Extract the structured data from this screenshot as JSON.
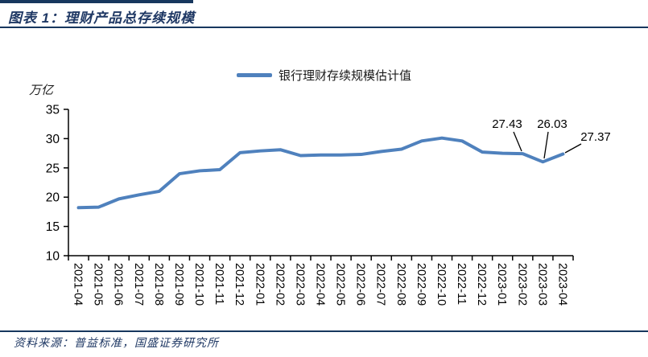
{
  "header": {
    "title": "图表 1：理财产品总存续规模"
  },
  "legend": {
    "label": "银行理财存续规模估计值"
  },
  "footer": {
    "source": "资料来源：普益标准，国盛证券研究所"
  },
  "colors": {
    "accent_navy": "#17375E",
    "title_navy": "#1F3864",
    "line_blue": "#4F81BD",
    "axis_black": "#000000"
  },
  "chart_data": {
    "type": "line",
    "title": "理财产品总存续规模",
    "series_name": "银行理财存续规模估计值",
    "xlabel": "",
    "ylabel": "万亿",
    "ylim": [
      10,
      35
    ],
    "yticks": [
      10,
      15,
      20,
      25,
      30,
      35
    ],
    "grid": false,
    "legend_position": "top",
    "line_color": "#4F81BD",
    "categories": [
      "2021-04",
      "2021-05",
      "2021-06",
      "2021-07",
      "2021-08",
      "2021-09",
      "2021-10",
      "2021-11",
      "2021-12",
      "2022-01",
      "2022-02",
      "2022-03",
      "2022-04",
      "2022-05",
      "2022-06",
      "2022-07",
      "2022-08",
      "2022-09",
      "2022-10",
      "2022-11",
      "2022-12",
      "2023-01",
      "2023-02",
      "2023-03",
      "2023-04"
    ],
    "values": [
      18.2,
      18.3,
      19.7,
      20.4,
      21.0,
      24.0,
      24.5,
      24.7,
      27.6,
      27.9,
      28.1,
      27.1,
      27.2,
      27.2,
      27.3,
      27.8,
      28.2,
      29.6,
      30.1,
      29.6,
      27.7,
      27.5,
      27.43,
      26.03,
      27.37
    ],
    "annotations": [
      {
        "category": "2023-02",
        "index": 22,
        "label": "27.43"
      },
      {
        "category": "2023-03",
        "index": 23,
        "label": "26.03"
      },
      {
        "category": "2023-04",
        "index": 24,
        "label": "27.37"
      }
    ]
  }
}
